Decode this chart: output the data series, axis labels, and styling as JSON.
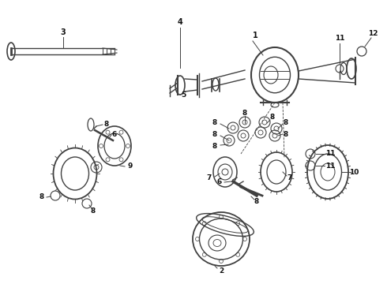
{
  "bg_color": "#ffffff",
  "line_color": "#404040",
  "label_color": "#111111",
  "fig_width": 4.9,
  "fig_height": 3.6,
  "dpi": 100,
  "fontsize": 6.5
}
